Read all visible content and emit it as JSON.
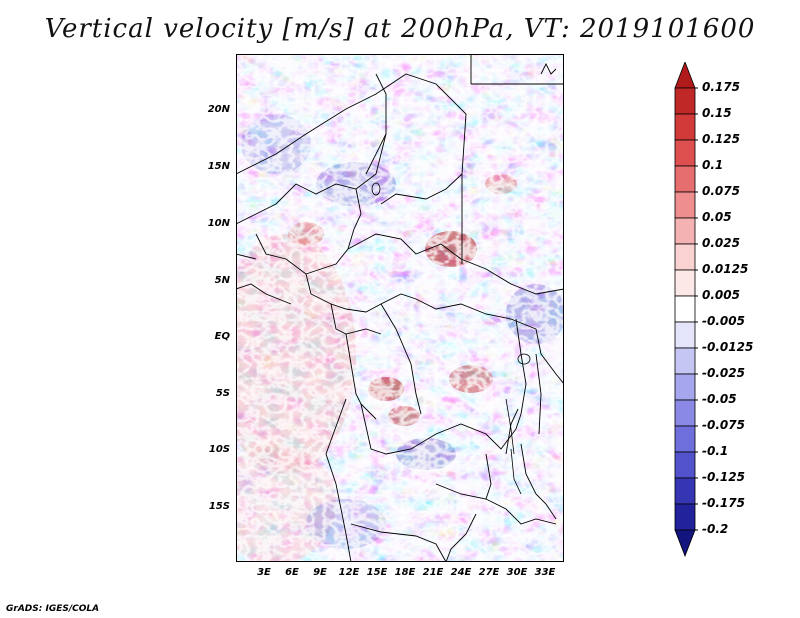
{
  "title": "Vertical velocity [m/s] at 200hPa, VT: 2019101600",
  "credit": "GrADS: IGES/COLA",
  "map": {
    "lat_ticks": [
      "20N",
      "15N",
      "10N",
      "5N",
      "EQ",
      "5S",
      "10S",
      "15S"
    ],
    "lon_ticks": [
      "3E",
      "6E",
      "9E",
      "12E",
      "15E",
      "18E",
      "21E",
      "24E",
      "27E",
      "30E",
      "33E"
    ]
  },
  "colorbar": {
    "levels": [
      "0.175",
      "0.15",
      "0.125",
      "0.1",
      "0.075",
      "0.05",
      "0.025",
      "0.0125",
      "0.005",
      "-0.005",
      "-0.0125",
      "-0.025",
      "-0.05",
      "-0.075",
      "-0.1",
      "-0.125",
      "-0.175",
      "-0.2"
    ],
    "colors": [
      "#b01a1a",
      "#c02828",
      "#d23a3a",
      "#de5050",
      "#e66e6e",
      "#ee8e8e",
      "#f5b2b2",
      "#fbd2d2",
      "#fde8e8",
      "#ffffff",
      "#e4e4fb",
      "#c6c6f5",
      "#a6a6ef",
      "#8a8ae6",
      "#6e6edc",
      "#5252cc",
      "#3636b4",
      "#22229c",
      "#14147e"
    ]
  }
}
